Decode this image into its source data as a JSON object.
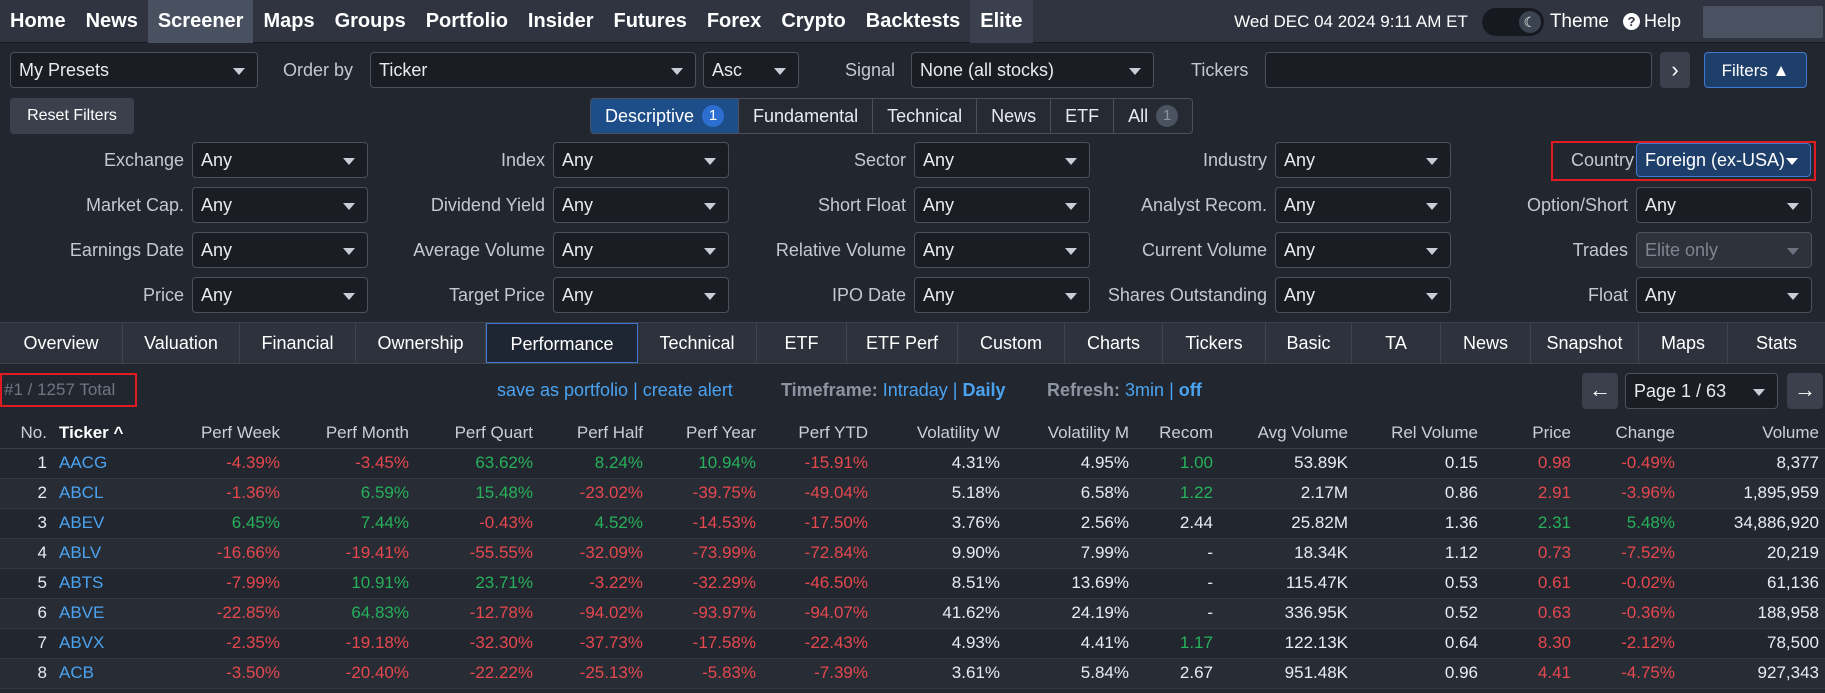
{
  "nav": {
    "items": [
      "Home",
      "News",
      "Screener",
      "Maps",
      "Groups",
      "Portfolio",
      "Insider",
      "Futures",
      "Forex",
      "Crypto",
      "Backtests",
      "Elite"
    ],
    "active": "Screener",
    "datetime": "Wed DEC 04 2024 9:11 AM ET",
    "theme_label": "Theme",
    "help_label": "Help"
  },
  "controls": {
    "presets": "My Presets",
    "order_by_label": "Order by",
    "order_by_value": "Ticker",
    "order_dir": "Asc",
    "signal_label": "Signal",
    "signal_value": "None (all stocks)",
    "tickers_label": "Tickers",
    "tickers_value": "",
    "go_arrow": "›",
    "filters_button": "Filters ▲",
    "reset_filters": "Reset Filters"
  },
  "filter_tabs": [
    {
      "label": "Descriptive",
      "badge": "1"
    },
    {
      "label": "Fundamental",
      "badge": ""
    },
    {
      "label": "Technical",
      "badge": ""
    },
    {
      "label": "News",
      "badge": ""
    },
    {
      "label": "ETF",
      "badge": ""
    },
    {
      "label": "All",
      "badge": "1"
    }
  ],
  "filters": {
    "col1": [
      {
        "label": "Exchange",
        "value": "Any"
      },
      {
        "label": "Market Cap.",
        "value": "Any"
      },
      {
        "label": "Earnings Date",
        "value": "Any"
      },
      {
        "label": "Price",
        "value": "Any"
      }
    ],
    "col2": [
      {
        "label": "Index",
        "value": "Any"
      },
      {
        "label": "Dividend Yield",
        "value": "Any"
      },
      {
        "label": "Average Volume",
        "value": "Any"
      },
      {
        "label": "Target Price",
        "value": "Any"
      }
    ],
    "col3": [
      {
        "label": "Sector",
        "value": "Any"
      },
      {
        "label": "Short Float",
        "value": "Any"
      },
      {
        "label": "Relative Volume",
        "value": "Any"
      },
      {
        "label": "IPO Date",
        "value": "Any"
      }
    ],
    "col4": [
      {
        "label": "Industry",
        "value": "Any"
      },
      {
        "label": "Analyst Recom.",
        "value": "Any"
      },
      {
        "label": "Current Volume",
        "value": "Any"
      },
      {
        "label": "Shares Outstanding",
        "value": "Any"
      }
    ],
    "col5": [
      {
        "label": "Country",
        "value": "Foreign (ex-USA)"
      },
      {
        "label": "Option/Short",
        "value": "Any"
      },
      {
        "label": "Trades",
        "value": "Elite only"
      },
      {
        "label": "Float",
        "value": "Any"
      }
    ]
  },
  "view_tabs": [
    "Overview",
    "Valuation",
    "Financial",
    "Ownership",
    "Performance",
    "Technical",
    "ETF",
    "ETF Perf",
    "Custom",
    "Charts",
    "Tickers",
    "Basic",
    "TA",
    "News",
    "Snapshot",
    "Maps",
    "Stats"
  ],
  "view_active": "Performance",
  "info": {
    "total": "#1 / 1257 Total",
    "save_portfolio": "save as portfolio",
    "create_alert": "create alert",
    "timeframe_label": "Timeframe:",
    "timeframe_intraday": "Intraday",
    "timeframe_daily": "Daily",
    "refresh_label": "Refresh:",
    "refresh_value": "3min",
    "refresh_off": "off",
    "page": "Page 1 / 63",
    "prev": "←",
    "next": "→"
  },
  "table": {
    "headers": [
      "No.",
      "Ticker ^",
      "Perf Week",
      "Perf Month",
      "Perf Quart",
      "Perf Half",
      "Perf Year",
      "Perf YTD",
      "Volatility W",
      "Volatility M",
      "Recom",
      "Avg Volume",
      "Rel Volume",
      "Price",
      "Change",
      "Volume"
    ],
    "rows": [
      {
        "no": "1",
        "ticker": "AACG",
        "pw": "-4.39%",
        "pm": "-3.45%",
        "pq": "63.62%",
        "ph": "8.24%",
        "py": "10.94%",
        "ytd": "-15.91%",
        "vw": "4.31%",
        "vm": "4.95%",
        "recom": "1.00",
        "avgvol": "53.89K",
        "relvol": "0.15",
        "price": "0.98",
        "change": "-0.49%",
        "volume": "8,377"
      },
      {
        "no": "2",
        "ticker": "ABCL",
        "pw": "-1.36%",
        "pm": "6.59%",
        "pq": "15.48%",
        "ph": "-23.02%",
        "py": "-39.75%",
        "ytd": "-49.04%",
        "vw": "5.18%",
        "vm": "6.58%",
        "recom": "1.22",
        "avgvol": "2.17M",
        "relvol": "0.86",
        "price": "2.91",
        "change": "-3.96%",
        "volume": "1,895,959"
      },
      {
        "no": "3",
        "ticker": "ABEV",
        "pw": "6.45%",
        "pm": "7.44%",
        "pq": "-0.43%",
        "ph": "4.52%",
        "py": "-14.53%",
        "ytd": "-17.50%",
        "vw": "3.76%",
        "vm": "2.56%",
        "recom": "2.44",
        "avgvol": "25.82M",
        "relvol": "1.36",
        "price": "2.31",
        "change": "5.48%",
        "volume": "34,886,920"
      },
      {
        "no": "4",
        "ticker": "ABLV",
        "pw": "-16.66%",
        "pm": "-19.41%",
        "pq": "-55.55%",
        "ph": "-32.09%",
        "py": "-73.99%",
        "ytd": "-72.84%",
        "vw": "9.90%",
        "vm": "7.99%",
        "recom": "-",
        "avgvol": "18.34K",
        "relvol": "1.12",
        "price": "0.73",
        "change": "-7.52%",
        "volume": "20,219"
      },
      {
        "no": "5",
        "ticker": "ABTS",
        "pw": "-7.99%",
        "pm": "10.91%",
        "pq": "23.71%",
        "ph": "-3.22%",
        "py": "-32.29%",
        "ytd": "-46.50%",
        "vw": "8.51%",
        "vm": "13.69%",
        "recom": "-",
        "avgvol": "115.47K",
        "relvol": "0.53",
        "price": "0.61",
        "change": "-0.02%",
        "volume": "61,136"
      },
      {
        "no": "6",
        "ticker": "ABVE",
        "pw": "-22.85%",
        "pm": "64.83%",
        "pq": "-12.78%",
        "ph": "-94.02%",
        "py": "-93.97%",
        "ytd": "-94.07%",
        "vw": "41.62%",
        "vm": "24.19%",
        "recom": "-",
        "avgvol": "336.95K",
        "relvol": "0.52",
        "price": "0.63",
        "change": "-0.36%",
        "volume": "188,958"
      },
      {
        "no": "7",
        "ticker": "ABVX",
        "pw": "-2.35%",
        "pm": "-19.18%",
        "pq": "-32.30%",
        "ph": "-37.73%",
        "py": "-17.58%",
        "ytd": "-22.43%",
        "vw": "4.93%",
        "vm": "4.41%",
        "recom": "1.17",
        "avgvol": "122.13K",
        "relvol": "0.64",
        "price": "8.30",
        "change": "-2.12%",
        "volume": "78,500"
      },
      {
        "no": "8",
        "ticker": "ACB",
        "pw": "-3.50%",
        "pm": "-20.40%",
        "pq": "-22.22%",
        "ph": "-25.13%",
        "py": "-5.83%",
        "ytd": "-7.39%",
        "vw": "3.61%",
        "vm": "5.84%",
        "recom": "2.67",
        "avgvol": "951.48K",
        "relvol": "0.96",
        "price": "4.41",
        "change": "-4.75%",
        "volume": "927,343"
      }
    ]
  },
  "colors": {
    "positive": "#27b15a",
    "negative": "#e5484d",
    "accent": "#4ba3f0",
    "highlight": "#e11b22"
  }
}
